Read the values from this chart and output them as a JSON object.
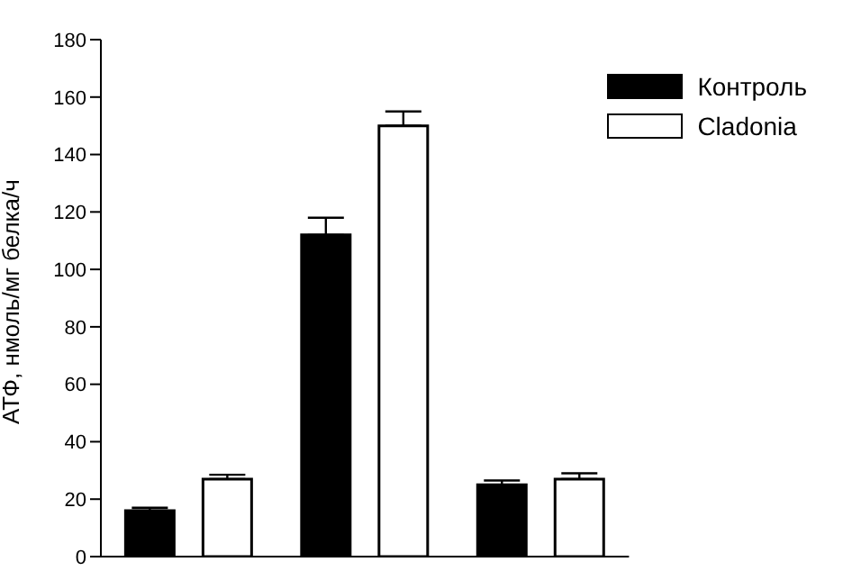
{
  "chart_data": {
    "type": "bar",
    "ylabel": "АТФ, нмоль/мг белка/ч",
    "categories": [
      null,
      null,
      null
    ],
    "series": [
      {
        "name": "Контроль",
        "color": "#000000",
        "values": [
          16,
          112,
          25
        ],
        "errors": [
          [
            16,
            17
          ],
          [
            112,
            118
          ],
          [
            25,
            26.5
          ]
        ]
      },
      {
        "name": "Cladonia",
        "color": "#ffffff",
        "values": [
          27,
          150,
          27
        ],
        "errors": [
          [
            27,
            28.5
          ],
          [
            150,
            155
          ],
          [
            27,
            29
          ]
        ]
      }
    ],
    "ylim": [
      0,
      180
    ],
    "yticks": [
      0,
      20,
      40,
      60,
      80,
      100,
      120,
      140,
      160,
      180
    ],
    "grid": false,
    "legend": "top right"
  }
}
